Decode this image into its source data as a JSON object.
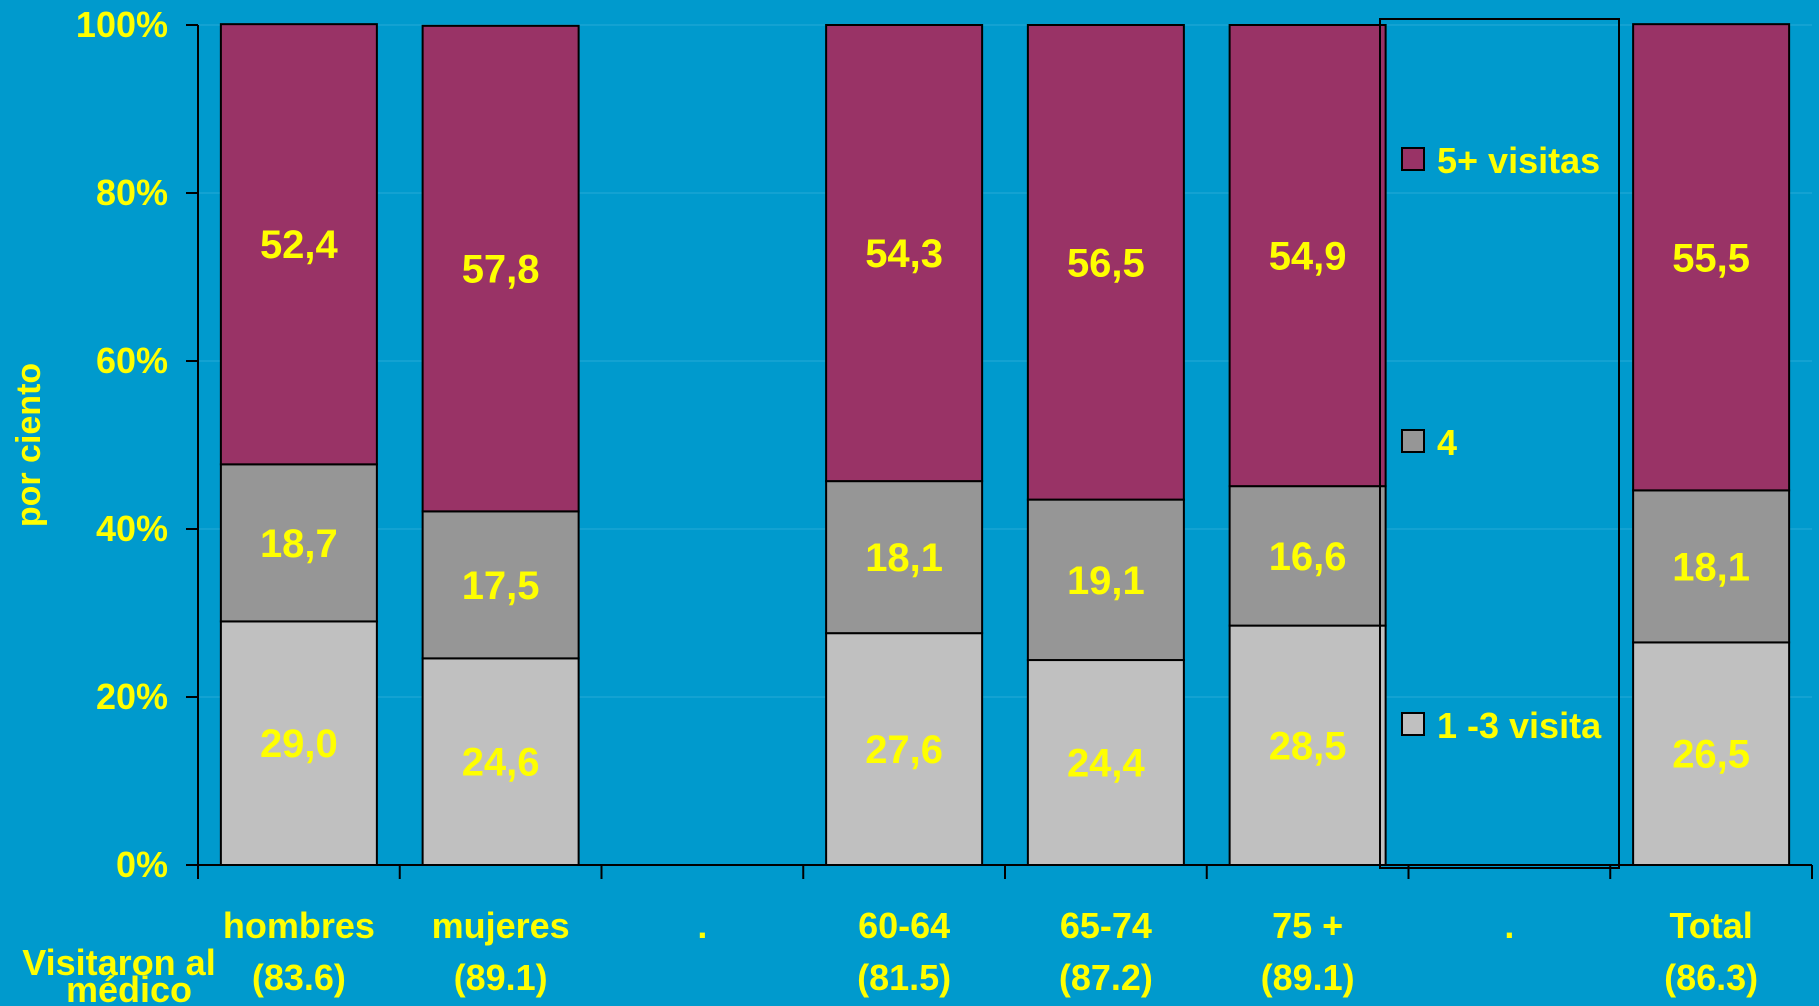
{
  "chart_data": {
    "type": "bar",
    "stacked": true,
    "percent": true,
    "ylabel": "por ciento",
    "xlabel_row_title": "Visitaron al médico",
    "ylim": [
      0,
      100
    ],
    "yticks": [
      "0%",
      "20%",
      "40%",
      "60%",
      "80%",
      "100%"
    ],
    "grid": true,
    "legend_position": "right",
    "categories": [
      "hombres",
      "mujeres",
      ".",
      "60-64",
      "65-74",
      "75 +",
      ".",
      "Total"
    ],
    "sublabels": [
      "(83.6)",
      "(89.1)",
      "",
      "(81.5)",
      "(87.2)",
      "(89.1)",
      "",
      "(86.3)"
    ],
    "series": [
      {
        "name": "1 -3 visita",
        "color": "#C0C0C0",
        "values": [
          29.0,
          24.6,
          null,
          27.6,
          24.4,
          28.5,
          null,
          26.5
        ],
        "labels": [
          "29,0",
          "24,6",
          "",
          "27,6",
          "24,4",
          "28,5",
          "",
          "26,5"
        ]
      },
      {
        "name": "4",
        "color": "#969696",
        "values": [
          18.7,
          17.5,
          null,
          18.1,
          19.1,
          16.6,
          null,
          18.1
        ],
        "labels": [
          "18,7",
          "17,5",
          "",
          "18,1",
          "19,1",
          "16,6",
          "",
          "18,1"
        ]
      },
      {
        "name": "5+ visitas",
        "color": "#993366",
        "values": [
          52.4,
          57.8,
          null,
          54.3,
          56.5,
          54.9,
          null,
          55.5
        ],
        "labels": [
          "52,4",
          "57,8",
          "",
          "54,3",
          "56,5",
          "54,9",
          "",
          "55,5"
        ]
      }
    ],
    "colors": {
      "background": "#009ACD",
      "text": "#FFFF00",
      "axis": "#000000"
    }
  }
}
